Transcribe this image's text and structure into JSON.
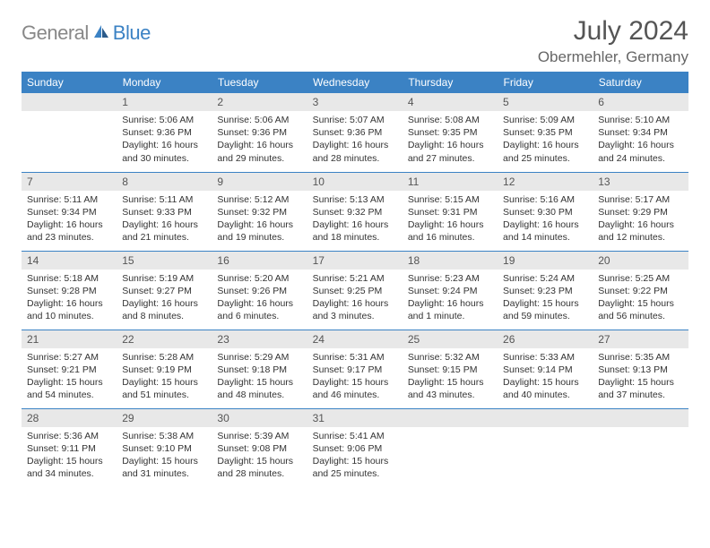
{
  "logo": {
    "gray": "General",
    "blue": "Blue"
  },
  "title": "July 2024",
  "location": "Obermehler, Germany",
  "colors": {
    "accent": "#3b82c4",
    "daynum_bg": "#e8e8e8",
    "text": "#333333",
    "muted": "#666666",
    "logo_gray": "#888888"
  },
  "weekdays": [
    "Sunday",
    "Monday",
    "Tuesday",
    "Wednesday",
    "Thursday",
    "Friday",
    "Saturday"
  ],
  "layout": {
    "first_weekday_index": 1,
    "num_days": 31
  },
  "days": {
    "1": {
      "sunrise": "5:06 AM",
      "sunset": "9:36 PM",
      "daylight": "16 hours and 30 minutes."
    },
    "2": {
      "sunrise": "5:06 AM",
      "sunset": "9:36 PM",
      "daylight": "16 hours and 29 minutes."
    },
    "3": {
      "sunrise": "5:07 AM",
      "sunset": "9:36 PM",
      "daylight": "16 hours and 28 minutes."
    },
    "4": {
      "sunrise": "5:08 AM",
      "sunset": "9:35 PM",
      "daylight": "16 hours and 27 minutes."
    },
    "5": {
      "sunrise": "5:09 AM",
      "sunset": "9:35 PM",
      "daylight": "16 hours and 25 minutes."
    },
    "6": {
      "sunrise": "5:10 AM",
      "sunset": "9:34 PM",
      "daylight": "16 hours and 24 minutes."
    },
    "7": {
      "sunrise": "5:11 AM",
      "sunset": "9:34 PM",
      "daylight": "16 hours and 23 minutes."
    },
    "8": {
      "sunrise": "5:11 AM",
      "sunset": "9:33 PM",
      "daylight": "16 hours and 21 minutes."
    },
    "9": {
      "sunrise": "5:12 AM",
      "sunset": "9:32 PM",
      "daylight": "16 hours and 19 minutes."
    },
    "10": {
      "sunrise": "5:13 AM",
      "sunset": "9:32 PM",
      "daylight": "16 hours and 18 minutes."
    },
    "11": {
      "sunrise": "5:15 AM",
      "sunset": "9:31 PM",
      "daylight": "16 hours and 16 minutes."
    },
    "12": {
      "sunrise": "5:16 AM",
      "sunset": "9:30 PM",
      "daylight": "16 hours and 14 minutes."
    },
    "13": {
      "sunrise": "5:17 AM",
      "sunset": "9:29 PM",
      "daylight": "16 hours and 12 minutes."
    },
    "14": {
      "sunrise": "5:18 AM",
      "sunset": "9:28 PM",
      "daylight": "16 hours and 10 minutes."
    },
    "15": {
      "sunrise": "5:19 AM",
      "sunset": "9:27 PM",
      "daylight": "16 hours and 8 minutes."
    },
    "16": {
      "sunrise": "5:20 AM",
      "sunset": "9:26 PM",
      "daylight": "16 hours and 6 minutes."
    },
    "17": {
      "sunrise": "5:21 AM",
      "sunset": "9:25 PM",
      "daylight": "16 hours and 3 minutes."
    },
    "18": {
      "sunrise": "5:23 AM",
      "sunset": "9:24 PM",
      "daylight": "16 hours and 1 minute."
    },
    "19": {
      "sunrise": "5:24 AM",
      "sunset": "9:23 PM",
      "daylight": "15 hours and 59 minutes."
    },
    "20": {
      "sunrise": "5:25 AM",
      "sunset": "9:22 PM",
      "daylight": "15 hours and 56 minutes."
    },
    "21": {
      "sunrise": "5:27 AM",
      "sunset": "9:21 PM",
      "daylight": "15 hours and 54 minutes."
    },
    "22": {
      "sunrise": "5:28 AM",
      "sunset": "9:19 PM",
      "daylight": "15 hours and 51 minutes."
    },
    "23": {
      "sunrise": "5:29 AM",
      "sunset": "9:18 PM",
      "daylight": "15 hours and 48 minutes."
    },
    "24": {
      "sunrise": "5:31 AM",
      "sunset": "9:17 PM",
      "daylight": "15 hours and 46 minutes."
    },
    "25": {
      "sunrise": "5:32 AM",
      "sunset": "9:15 PM",
      "daylight": "15 hours and 43 minutes."
    },
    "26": {
      "sunrise": "5:33 AM",
      "sunset": "9:14 PM",
      "daylight": "15 hours and 40 minutes."
    },
    "27": {
      "sunrise": "5:35 AM",
      "sunset": "9:13 PM",
      "daylight": "15 hours and 37 minutes."
    },
    "28": {
      "sunrise": "5:36 AM",
      "sunset": "9:11 PM",
      "daylight": "15 hours and 34 minutes."
    },
    "29": {
      "sunrise": "5:38 AM",
      "sunset": "9:10 PM",
      "daylight": "15 hours and 31 minutes."
    },
    "30": {
      "sunrise": "5:39 AM",
      "sunset": "9:08 PM",
      "daylight": "15 hours and 28 minutes."
    },
    "31": {
      "sunrise": "5:41 AM",
      "sunset": "9:06 PM",
      "daylight": "15 hours and 25 minutes."
    }
  },
  "labels": {
    "sunrise": "Sunrise:",
    "sunset": "Sunset:",
    "daylight": "Daylight:"
  }
}
